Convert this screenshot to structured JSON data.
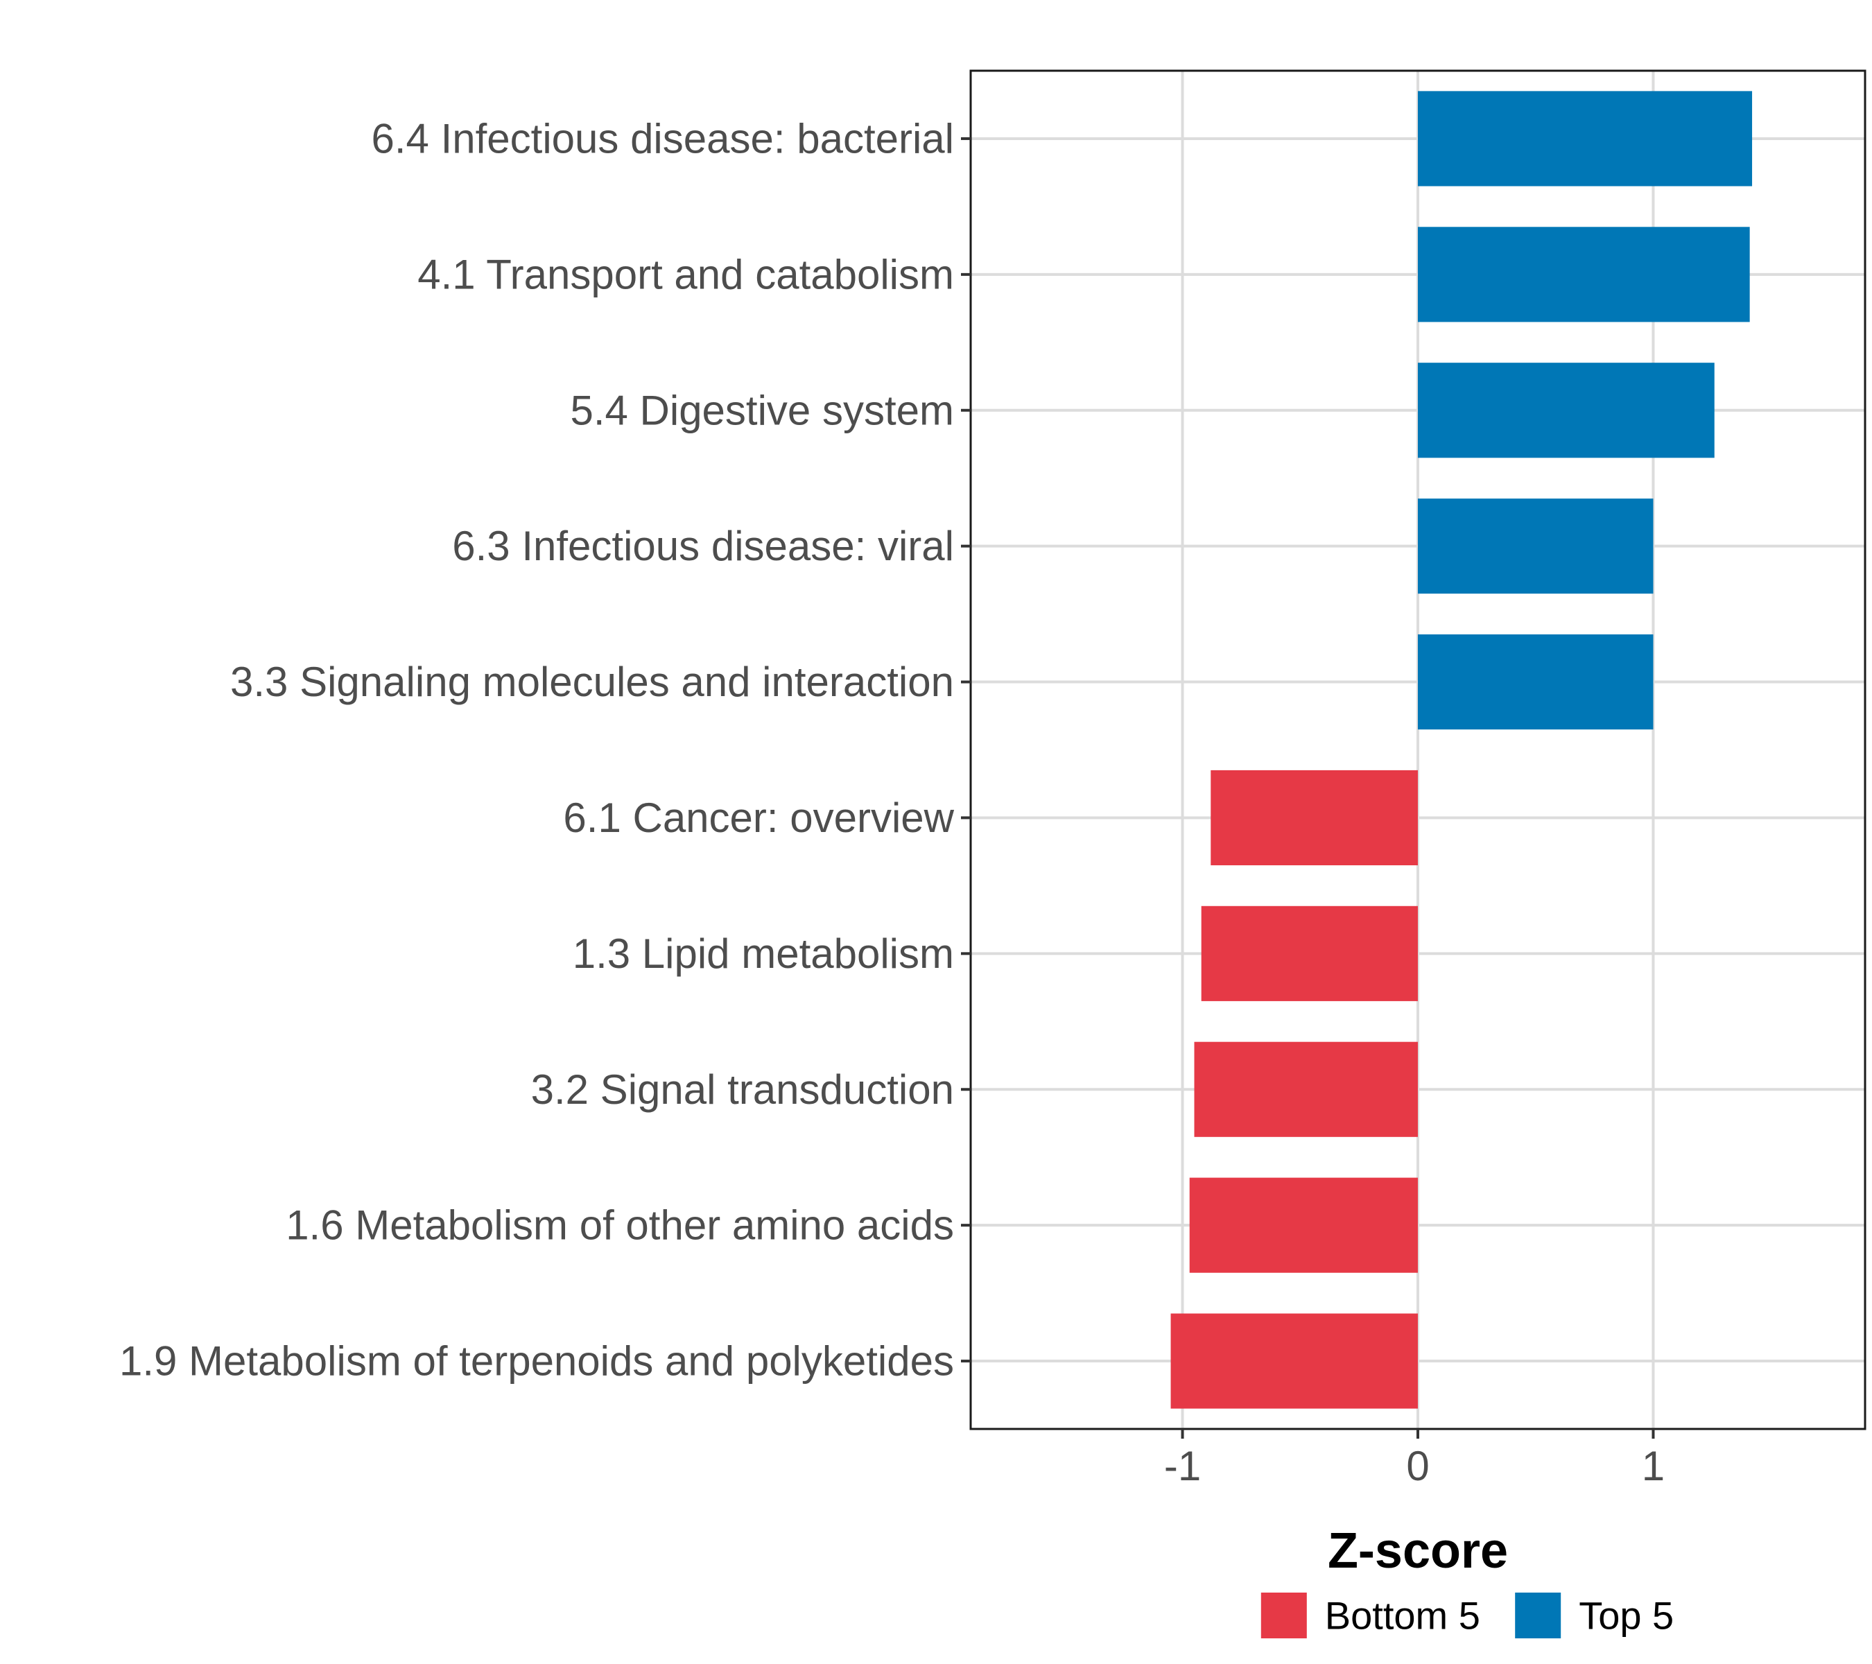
{
  "chart_data": {
    "type": "bar",
    "orientation": "horizontal",
    "categories": [
      "6.4 Infectious disease: bacterial",
      "4.1 Transport and catabolism",
      "5.4 Digestive system",
      "6.3 Infectious disease: viral",
      "3.3 Signaling molecules and interaction",
      "6.1 Cancer: overview",
      "1.3 Lipid metabolism",
      "3.2 Signal transduction",
      "1.6 Metabolism of other amino acids",
      "1.9 Metabolism of terpenoids and polyketides"
    ],
    "values": [
      1.42,
      1.41,
      1.26,
      1.0,
      1.0,
      -0.88,
      -0.92,
      -0.95,
      -0.97,
      -1.05
    ],
    "groups": [
      "Top 5",
      "Top 5",
      "Top 5",
      "Top 5",
      "Top 5",
      "Bottom 5",
      "Bottom 5",
      "Bottom 5",
      "Bottom 5",
      "Bottom 5"
    ],
    "xlabel": "Z-score",
    "ylabel": "",
    "xlim": [
      -1.9,
      1.9
    ],
    "xticks": [
      -1,
      0,
      1
    ],
    "xtick_labels": [
      "-1",
      "0",
      "1"
    ],
    "grid": true,
    "legend": {
      "placement": "bottom",
      "entries": [
        {
          "label": "Bottom 5",
          "color": "#e63946"
        },
        {
          "label": "Top 5",
          "color": "#0077b6"
        }
      ]
    },
    "colors": {
      "Top 5": "#0077b6",
      "Bottom 5": "#e63946"
    }
  }
}
